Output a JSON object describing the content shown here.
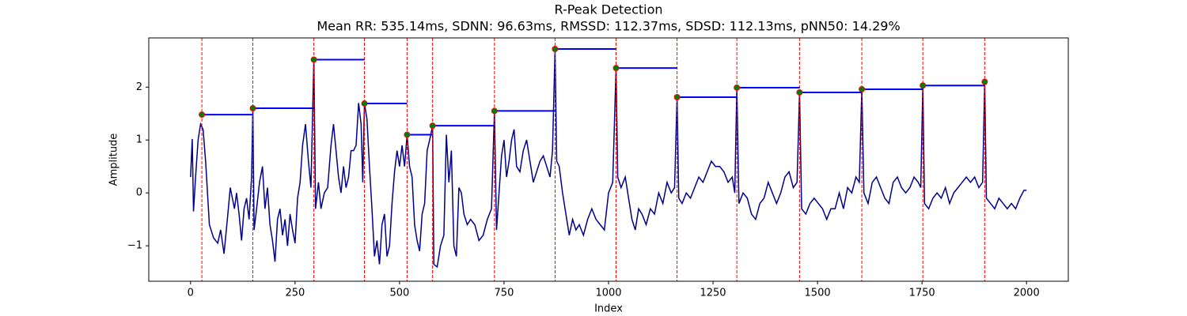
{
  "chart_data": {
    "type": "line",
    "title": "R-Peak Detection",
    "subtitle": "Mean RR: 535.14ms, SDNN: 96.63ms, RMSSD: 112.37ms, SDSD: 112.13ms, pNN50: 14.29%",
    "xlabel": "Index",
    "ylabel": "Amplitude",
    "xlim": [
      -100,
      2100
    ],
    "ylim": [
      -1.67,
      2.93
    ],
    "xticks": [
      0,
      250,
      500,
      750,
      1000,
      1250,
      1500,
      1750,
      2000
    ],
    "yticks": [
      {
        "value": -1,
        "label": "−1"
      },
      0,
      1,
      2
    ],
    "x": [
      0,
      4,
      7,
      12,
      18,
      24,
      30,
      36,
      45,
      55,
      65,
      72,
      80,
      88,
      95,
      100,
      105,
      110,
      116,
      122,
      128,
      134,
      140,
      146,
      149,
      152,
      158,
      165,
      172,
      178,
      184,
      190,
      196,
      202,
      208,
      214,
      220,
      226,
      232,
      238,
      244,
      250,
      256,
      262,
      268,
      275,
      282,
      288,
      295,
      299,
      306,
      312,
      320,
      328,
      336,
      342,
      348,
      354,
      360,
      366,
      372,
      378,
      384,
      390,
      396,
      402,
      408,
      412,
      416,
      422,
      428,
      434,
      440,
      446,
      452,
      458,
      464,
      470,
      476,
      482,
      488,
      494,
      500,
      506,
      512,
      518,
      524,
      530,
      536,
      542,
      548,
      554,
      560,
      566,
      572,
      579,
      582,
      590,
      598,
      606,
      612,
      618,
      624,
      630,
      636,
      642,
      648,
      654,
      662,
      670,
      680,
      690,
      700,
      710,
      720,
      727,
      732,
      738,
      744,
      750,
      756,
      762,
      768,
      774,
      780,
      788,
      796,
      804,
      812,
      820,
      828,
      836,
      844,
      852,
      860,
      866,
      872,
      876,
      882,
      890,
      898,
      906,
      914,
      922,
      930,
      940,
      950,
      960,
      970,
      980,
      990,
      1000,
      1010,
      1018,
      1022,
      1030,
      1040,
      1048,
      1056,
      1064,
      1072,
      1080,
      1090,
      1100,
      1110,
      1120,
      1130,
      1140,
      1150,
      1158,
      1164,
      1168,
      1176,
      1186,
      1196,
      1206,
      1216,
      1226,
      1236,
      1246,
      1256,
      1266,
      1276,
      1286,
      1296,
      1302,
      1307,
      1312,
      1322,
      1332,
      1342,
      1352,
      1362,
      1372,
      1382,
      1392,
      1402,
      1412,
      1422,
      1432,
      1442,
      1451,
      1457,
      1462,
      1472,
      1482,
      1492,
      1502,
      1512,
      1522,
      1532,
      1542,
      1552,
      1562,
      1572,
      1582,
      1592,
      1600,
      1606,
      1611,
      1621,
      1631,
      1641,
      1651,
      1661,
      1671,
      1681,
      1691,
      1701,
      1711,
      1721,
      1731,
      1741,
      1747,
      1752,
      1756,
      1766,
      1776,
      1786,
      1796,
      1806,
      1816,
      1826,
      1836,
      1846,
      1856,
      1866,
      1876,
      1886,
      1895,
      1900,
      1904,
      1914,
      1924,
      1934,
      1944,
      1954,
      1964,
      1974,
      1984,
      1994,
      2000
    ],
    "series": [
      {
        "color": "#00008b",
        "values": [
          0.3,
          1.02,
          -0.35,
          0.3,
          1.0,
          1.3,
          1.2,
          0.6,
          -0.6,
          -0.85,
          -0.95,
          -0.7,
          -1.15,
          -0.5,
          0.1,
          -0.1,
          -0.3,
          0.0,
          -0.4,
          -0.9,
          -0.3,
          -0.1,
          -0.5,
          0.3,
          1.6,
          -0.7,
          -0.3,
          0.2,
          0.5,
          -0.3,
          0.1,
          -0.6,
          -0.9,
          -1.3,
          -0.5,
          -0.3,
          -0.8,
          -0.5,
          -1.0,
          -0.4,
          -0.7,
          -0.95,
          -0.1,
          0.2,
          0.9,
          1.3,
          0.6,
          0.1,
          2.52,
          -0.3,
          0.2,
          -0.3,
          0.0,
          0.1,
          0.9,
          1.3,
          0.8,
          0.3,
          0.0,
          0.5,
          0.1,
          0.3,
          0.8,
          0.8,
          0.9,
          1.7,
          1.3,
          0.2,
          1.69,
          1.4,
          0.5,
          -0.3,
          -1.2,
          -0.9,
          -1.35,
          -0.6,
          -0.4,
          -1.2,
          -1.0,
          -0.2,
          0.4,
          0.8,
          0.5,
          0.9,
          0.5,
          1.1,
          0.5,
          0.3,
          -0.6,
          -0.9,
          -1.1,
          -0.4,
          -0.2,
          0.8,
          1.0,
          1.27,
          -1.35,
          -1.4,
          -1.0,
          -0.8,
          1.1,
          0.2,
          0.8,
          -1.0,
          -1.2,
          0.1,
          0.0,
          -0.4,
          -0.6,
          -0.5,
          -0.6,
          -0.9,
          -0.8,
          -0.5,
          -0.3,
          1.55,
          -0.7,
          0.0,
          0.7,
          1.0,
          0.3,
          0.6,
          1.0,
          1.2,
          0.5,
          0.4,
          0.8,
          1.0,
          0.6,
          0.2,
          0.4,
          0.6,
          0.7,
          0.5,
          0.3,
          0.8,
          2.72,
          0.6,
          0.5,
          0.0,
          -0.4,
          -0.8,
          -0.5,
          -0.7,
          -0.6,
          -0.8,
          -0.5,
          -0.3,
          -0.5,
          -0.6,
          -0.7,
          0.0,
          0.2,
          2.36,
          0.3,
          0.1,
          0.3,
          -0.1,
          -0.5,
          -0.7,
          -0.3,
          -0.4,
          -0.6,
          -0.3,
          -0.4,
          0.0,
          -0.2,
          0.2,
          0.0,
          0.1,
          1.81,
          -0.1,
          -0.2,
          0.0,
          -0.1,
          0.1,
          0.3,
          0.2,
          0.4,
          0.6,
          0.5,
          0.5,
          0.4,
          0.2,
          0.3,
          0.0,
          1.99,
          -0.2,
          0.0,
          -0.1,
          -0.4,
          -0.5,
          -0.2,
          -0.1,
          0.2,
          0.0,
          -0.2,
          0.0,
          0.3,
          0.4,
          0.1,
          0.2,
          1.9,
          -0.3,
          -0.4,
          -0.2,
          -0.1,
          -0.2,
          -0.3,
          -0.5,
          -0.3,
          -0.3,
          0.0,
          -0.3,
          0.1,
          0.0,
          0.3,
          0.2,
          1.96,
          0.0,
          -0.2,
          0.2,
          0.3,
          0.1,
          -0.1,
          -0.2,
          0.2,
          0.3,
          0.1,
          0.0,
          0.1,
          0.3,
          0.2,
          0.1,
          2.03,
          -0.2,
          -0.3,
          -0.1,
          0.0,
          -0.1,
          0.1,
          -0.2,
          0.0,
          0.1,
          0.2,
          0.3,
          0.2,
          0.3,
          0.1,
          0.2,
          2.1,
          -0.1,
          -0.2,
          -0.3,
          -0.1,
          -0.2,
          -0.3,
          -0.2,
          -0.3,
          -0.1,
          0.05,
          0.05
        ]
      }
    ],
    "peaks": {
      "color": "green",
      "edgecolor": "red",
      "line_color": "red",
      "interval_color": "blue",
      "x": [
        27,
        149,
        295,
        416,
        518,
        579,
        727,
        872,
        1018,
        1164,
        1307,
        1457,
        1606,
        1752,
        1900
      ],
      "values": [
        1.48,
        1.6,
        2.52,
        1.69,
        1.1,
        1.27,
        1.55,
        2.72,
        2.36,
        1.81,
        1.99,
        1.9,
        1.96,
        2.03,
        2.1
      ]
    }
  }
}
